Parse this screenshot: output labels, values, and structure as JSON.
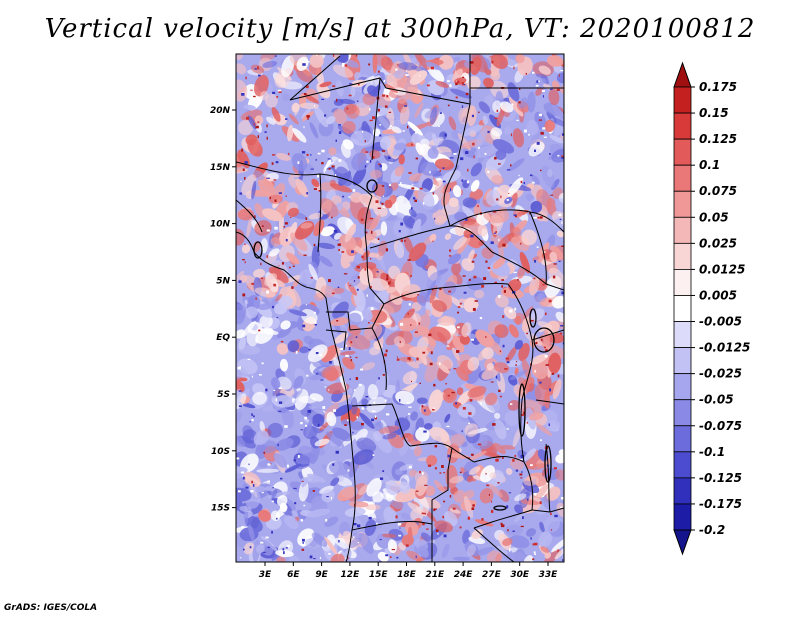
{
  "title": "Vertical velocity [m/s] at 300hPa, VT: 2020100812",
  "footer": "GrADS: IGES/COLA",
  "map": {
    "lat_ticks": [
      "20N",
      "15N",
      "10N",
      "5N",
      "EQ",
      "5S",
      "10S",
      "15S"
    ],
    "lon_ticks": [
      "3E",
      "6E",
      "9E",
      "12E",
      "15E",
      "18E",
      "21E",
      "24E",
      "27E",
      "30E",
      "33E"
    ]
  },
  "colorbar": {
    "labels": [
      "0.175",
      "0.15",
      "0.125",
      "0.1",
      "0.075",
      "0.05",
      "0.025",
      "0.0125",
      "0.005",
      "-0.005",
      "-0.0125",
      "-0.025",
      "-0.05",
      "-0.075",
      "-0.1",
      "-0.125",
      "-0.175",
      "-0.2"
    ],
    "colors": [
      "#a01010",
      "#c42020",
      "#d83a3a",
      "#e25a5a",
      "#ea7878",
      "#f09898",
      "#f5b8b8",
      "#f9d6d6",
      "#fdf0f0",
      "#ffffff",
      "#dcdcfa",
      "#c2c2f4",
      "#a6a6ee",
      "#8a8ae6",
      "#6c6cdc",
      "#4c4cd0",
      "#3030bc",
      "#1c1ca6",
      "#14148c"
    ]
  }
}
